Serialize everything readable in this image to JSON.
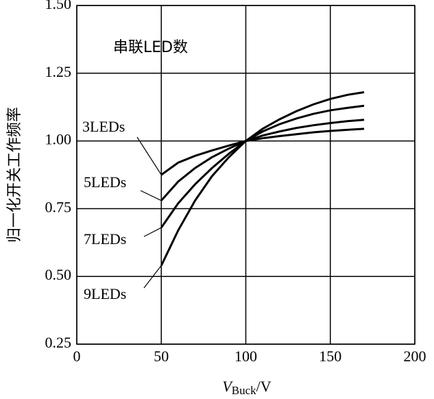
{
  "chart_data": {
    "type": "line",
    "title": "串联LED数",
    "y_label": "归一化开关工作频率",
    "x_label_symbol": "V",
    "x_label_subscript": "Buck",
    "x_label_unit": "/V",
    "x": [
      50,
      60,
      70,
      80,
      90,
      100,
      110,
      120,
      130,
      140,
      150,
      160,
      170
    ],
    "series": [
      {
        "name": "3LEDs",
        "color": "#000000",
        "values": [
          0.875,
          0.92,
          0.945,
          0.965,
          0.983,
          1.0,
          1.01,
          1.018,
          1.025,
          1.032,
          1.037,
          1.041,
          1.045
        ]
      },
      {
        "name": "5LEDs",
        "color": "#000000",
        "values": [
          0.78,
          0.85,
          0.9,
          0.94,
          0.972,
          1.0,
          1.02,
          1.035,
          1.048,
          1.058,
          1.066,
          1.073,
          1.078
        ]
      },
      {
        "name": "7LEDs",
        "color": "#000000",
        "values": [
          0.68,
          0.77,
          0.84,
          0.9,
          0.953,
          1.0,
          1.035,
          1.062,
          1.083,
          1.1,
          1.113,
          1.122,
          1.13
        ]
      },
      {
        "name": "9LEDs",
        "color": "#000000",
        "values": [
          0.54,
          0.67,
          0.78,
          0.87,
          0.94,
          1.0,
          1.045,
          1.08,
          1.11,
          1.135,
          1.155,
          1.17,
          1.18
        ]
      }
    ],
    "xlim": [
      0,
      200
    ],
    "xticks": [
      0,
      50,
      100,
      150,
      200
    ],
    "ylim": [
      0.25,
      1.5
    ],
    "yticks": [
      {
        "value": 0.25,
        "label": "0.25"
      },
      {
        "value": 0.5,
        "label": "0.50"
      },
      {
        "value": 0.75,
        "label": "0.75"
      },
      {
        "value": 1.0,
        "label": "1.00"
      },
      {
        "value": 1.25,
        "label": "1.25"
      },
      {
        "value": 1.5,
        "label": "1.50"
      }
    ],
    "grid": true
  }
}
